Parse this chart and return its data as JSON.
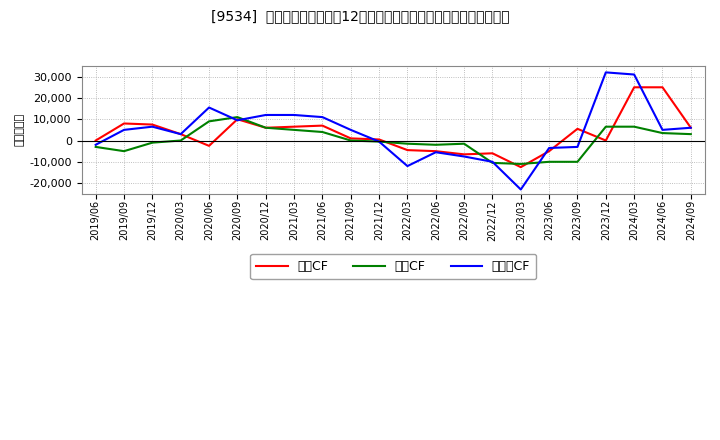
{
  "title": "[9534]  キャッシュフローの12か月移動合計の対前年同期増減額の推移",
  "ylabel": "（百万円）",
  "background_color": "#ffffff",
  "plot_bg_color": "#ffffff",
  "grid_color": "#aaaaaa",
  "x_labels": [
    "2019/06",
    "2019/09",
    "2019/12",
    "2020/03",
    "2020/06",
    "2020/09",
    "2020/12",
    "2021/03",
    "2021/06",
    "2021/09",
    "2021/12",
    "2022/03",
    "2022/06",
    "2022/09",
    "2022/12",
    "2023/03",
    "2023/06",
    "2023/09",
    "2023/12",
    "2024/03",
    "2024/06",
    "2024/09"
  ],
  "operating_cf": [
    0,
    8000,
    7500,
    3000,
    -2500,
    10000,
    6000,
    6500,
    7000,
    1000,
    500,
    -4500,
    -5000,
    -6500,
    -6000,
    -12500,
    -5000,
    5500,
    0,
    25000,
    25000,
    6000
  ],
  "investing_cf": [
    -3000,
    -5000,
    -1000,
    0,
    9000,
    11000,
    6000,
    5000,
    4000,
    0,
    -500,
    -1500,
    -2000,
    -1500,
    -10500,
    -11000,
    -10000,
    -10000,
    6500,
    6500,
    3500,
    3000
  ],
  "free_cf": [
    -2000,
    5000,
    6500,
    3000,
    15500,
    9500,
    12000,
    12000,
    11000,
    5000,
    -500,
    -12000,
    -5500,
    -7500,
    -10000,
    -23000,
    -3500,
    -3000,
    32000,
    31000,
    5000,
    6000
  ],
  "operating_color": "#ff0000",
  "investing_color": "#008000",
  "free_color": "#0000ff",
  "ylim": [
    -25000,
    35000
  ],
  "yticks": [
    -20000,
    -10000,
    0,
    10000,
    20000,
    30000
  ],
  "legend_labels": [
    "営業CF",
    "投資CF",
    "フリーCF"
  ]
}
